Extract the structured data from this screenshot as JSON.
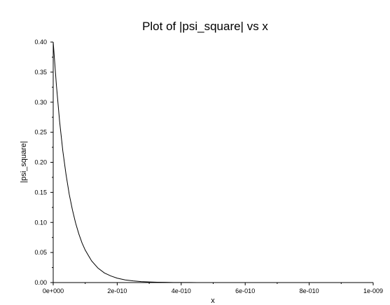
{
  "chart_data": {
    "type": "line",
    "title": "Plot of |psi_square| vs x",
    "xlabel": "x",
    "ylabel": "|psi_square|",
    "xlim": [
      0,
      1e-09
    ],
    "ylim": [
      0,
      0.4
    ],
    "x_ticks": [
      0,
      2e-10,
      4e-10,
      6e-10,
      8e-10,
      1e-09
    ],
    "x_tick_labels": [
      "0e+000",
      "2e-010",
      "4e-010",
      "6e-010",
      "8e-010",
      "1e-009"
    ],
    "y_ticks": [
      0.0,
      0.05,
      0.1,
      0.15,
      0.2,
      0.25,
      0.3,
      0.35,
      0.4
    ],
    "y_tick_labels": [
      "0.00",
      "0.05",
      "0.10",
      "0.15",
      "0.20",
      "0.25",
      "0.30",
      "0.35",
      "0.40"
    ],
    "grid": false,
    "series": [
      {
        "color": "#000000",
        "x": [
          0,
          1e-11,
          2e-11,
          3e-11,
          4e-11,
          5e-11,
          6e-11,
          7e-11,
          8e-11,
          9e-11,
          1e-10,
          1.2e-10,
          1.4e-10,
          1.6e-10,
          1.8e-10,
          2e-10,
          2.25e-10,
          2.5e-10,
          2.75e-10,
          3e-10,
          3.25e-10,
          3.5e-10,
          3.75e-10,
          4e-10,
          4.25e-10,
          4.5e-10,
          4.75e-10
        ],
        "y": [
          0.4,
          0.328,
          0.268,
          0.219,
          0.18,
          0.147,
          0.121,
          0.099,
          0.081,
          0.066,
          0.054,
          0.036,
          0.024,
          0.016,
          0.011,
          0.0073,
          0.0044,
          0.0027,
          0.0016,
          0.001,
          0.0006,
          0.0004,
          0.0002,
          0.00013,
          8e-05,
          5e-05,
          3e-05
        ]
      }
    ]
  }
}
